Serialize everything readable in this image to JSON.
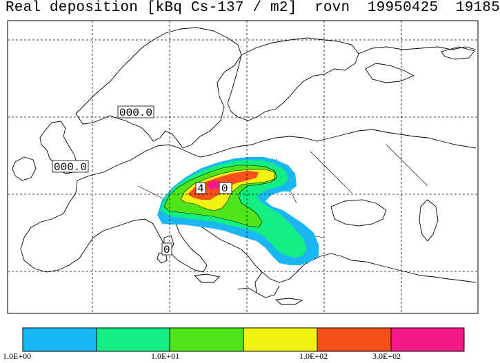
{
  "title": "Real deposition [kBq Cs-137 / m2]  rovn  19950425  19185",
  "map_labels": [
    {
      "text": "000.0"
    },
    {
      "text": "000.0"
    },
    {
      "text": "4"
    },
    {
      "text": "0"
    },
    {
      "text": "0"
    }
  ],
  "legend": {
    "colors": [
      "#1ab7f4",
      "#13ee83",
      "#4fe518",
      "#f1f212",
      "#f4521a",
      "#f41a8a"
    ],
    "labels": [
      "1.0E+00",
      "1.0E+01",
      "1.0E+02",
      "3.0E+02"
    ]
  },
  "colors": {
    "level1": "#1ab7f4",
    "level2": "#13ee83",
    "level3": "#4fe518",
    "level4": "#f1f212",
    "level5": "#f4521a",
    "level6": "#f41a8a"
  }
}
